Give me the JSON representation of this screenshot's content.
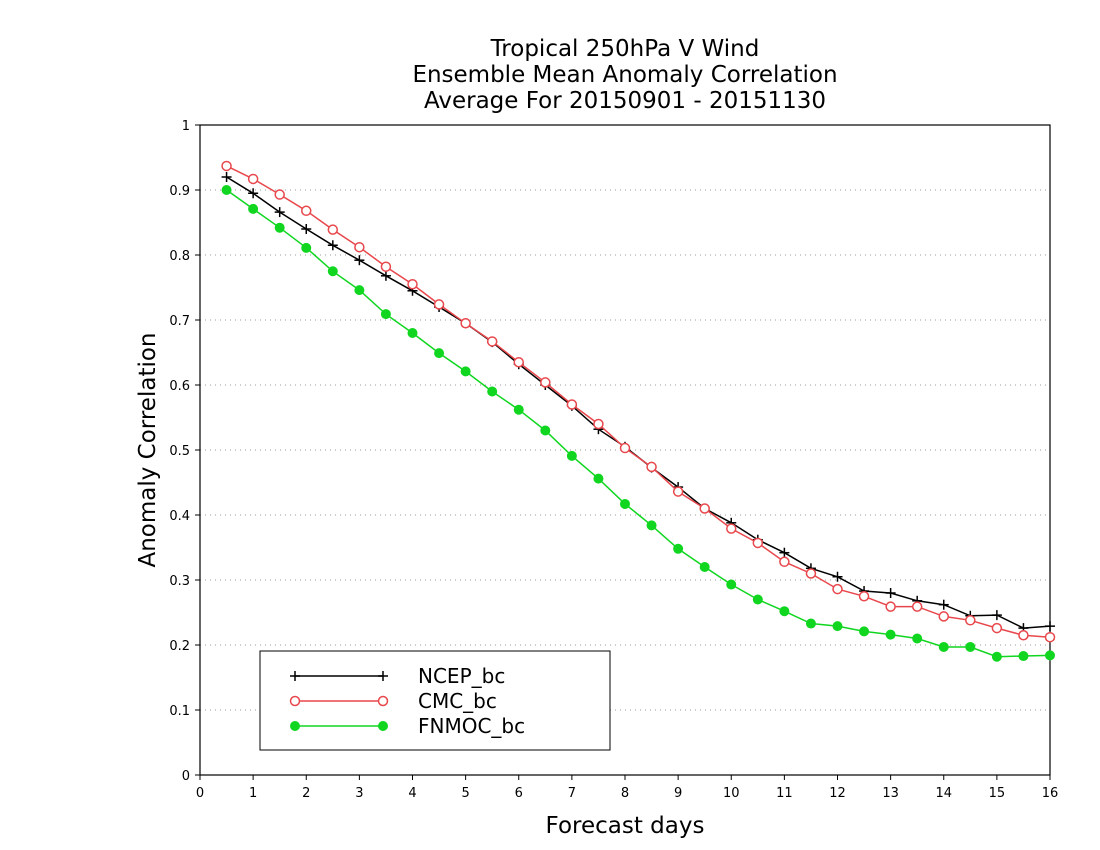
{
  "chart_data": {
    "type": "line",
    "title": [
      "Tropical 250hPa V Wind",
      "Ensemble Mean Anomaly Correlation",
      "Average For 20150901 - 20151130"
    ],
    "xlabel": "Forecast days",
    "ylabel": "Anomaly Correlation",
    "xlim": [
      0,
      16
    ],
    "ylim": [
      0,
      1
    ],
    "xticks": [
      "0",
      "1",
      "2",
      "3",
      "4",
      "5",
      "6",
      "7",
      "8",
      "9",
      "10",
      "11",
      "12",
      "13",
      "14",
      "15",
      "16"
    ],
    "yticks": [
      "0",
      "0.1",
      "0.2",
      "0.3",
      "0.4",
      "0.5",
      "0.6",
      "0.7",
      "0.8",
      "0.9",
      "1"
    ],
    "grid": true,
    "legend_position": "bottom-left",
    "x": [
      0.5,
      1,
      1.5,
      2,
      2.5,
      3,
      3.5,
      4,
      4.5,
      5,
      5.5,
      6,
      6.5,
      7,
      7.5,
      8,
      8.5,
      9,
      9.5,
      10,
      10.5,
      11,
      11.5,
      12,
      12.5,
      13,
      13.5,
      14,
      14.5,
      15,
      15.5,
      16
    ],
    "series": [
      {
        "name": "NCEP_bc",
        "color": "#000000",
        "marker": "plus",
        "values": [
          0.92,
          0.895,
          0.866,
          0.84,
          0.815,
          0.792,
          0.768,
          0.745,
          0.72,
          0.695,
          0.666,
          0.632,
          0.6,
          0.568,
          0.532,
          0.505,
          0.473,
          0.443,
          0.41,
          0.388,
          0.362,
          0.342,
          0.318,
          0.305,
          0.283,
          0.28,
          0.268,
          0.262,
          0.245,
          0.246,
          0.226,
          0.229
        ]
      },
      {
        "name": "CMC_bc",
        "color": "#e8474c",
        "marker": "open-circle",
        "values": [
          0.937,
          0.917,
          0.893,
          0.868,
          0.839,
          0.812,
          0.782,
          0.755,
          0.724,
          0.695,
          0.667,
          0.635,
          0.604,
          0.57,
          0.54,
          0.503,
          0.474,
          0.436,
          0.41,
          0.379,
          0.357,
          0.328,
          0.31,
          0.286,
          0.275,
          0.259,
          0.259,
          0.244,
          0.238,
          0.226,
          0.215,
          0.212
        ]
      },
      {
        "name": "FNMOC_bc",
        "color": "#10d620",
        "marker": "filled-circle",
        "values": [
          0.9,
          0.871,
          0.842,
          0.811,
          0.775,
          0.746,
          0.709,
          0.68,
          0.649,
          0.621,
          0.59,
          0.562,
          0.53,
          0.491,
          0.456,
          0.417,
          0.384,
          0.348,
          0.32,
          0.293,
          0.27,
          0.252,
          0.233,
          0.229,
          0.221,
          0.216,
          0.21,
          0.197,
          0.197,
          0.182,
          0.183,
          0.184
        ]
      }
    ]
  }
}
